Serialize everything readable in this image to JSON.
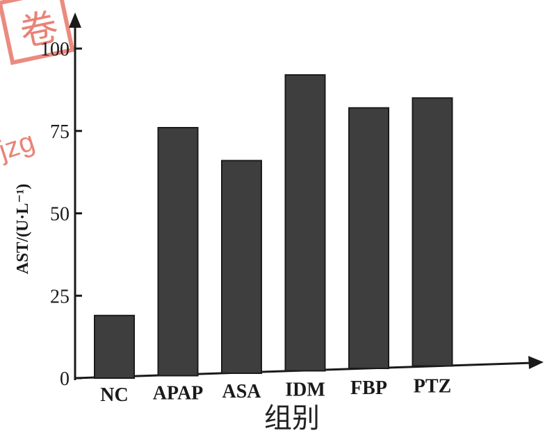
{
  "chart_data": {
    "type": "bar",
    "categories": [
      "NC",
      "APAP",
      "ASA",
      "IDM",
      "FBP",
      "PTZ"
    ],
    "values": [
      19,
      76,
      66,
      92,
      82,
      85
    ],
    "ylabel": "AST/(U·L⁻¹)",
    "xlabel": "组别",
    "ylim": [
      0,
      100
    ],
    "yticks": [
      0,
      25,
      50,
      75,
      100
    ],
    "grid": false,
    "legend": "none",
    "bar_color": "#3e3e3e",
    "axis_color": "#1a1a1a"
  },
  "watermark": {
    "text": "jzg",
    "seal_char": "卷",
    "color": "#e25a4a"
  }
}
